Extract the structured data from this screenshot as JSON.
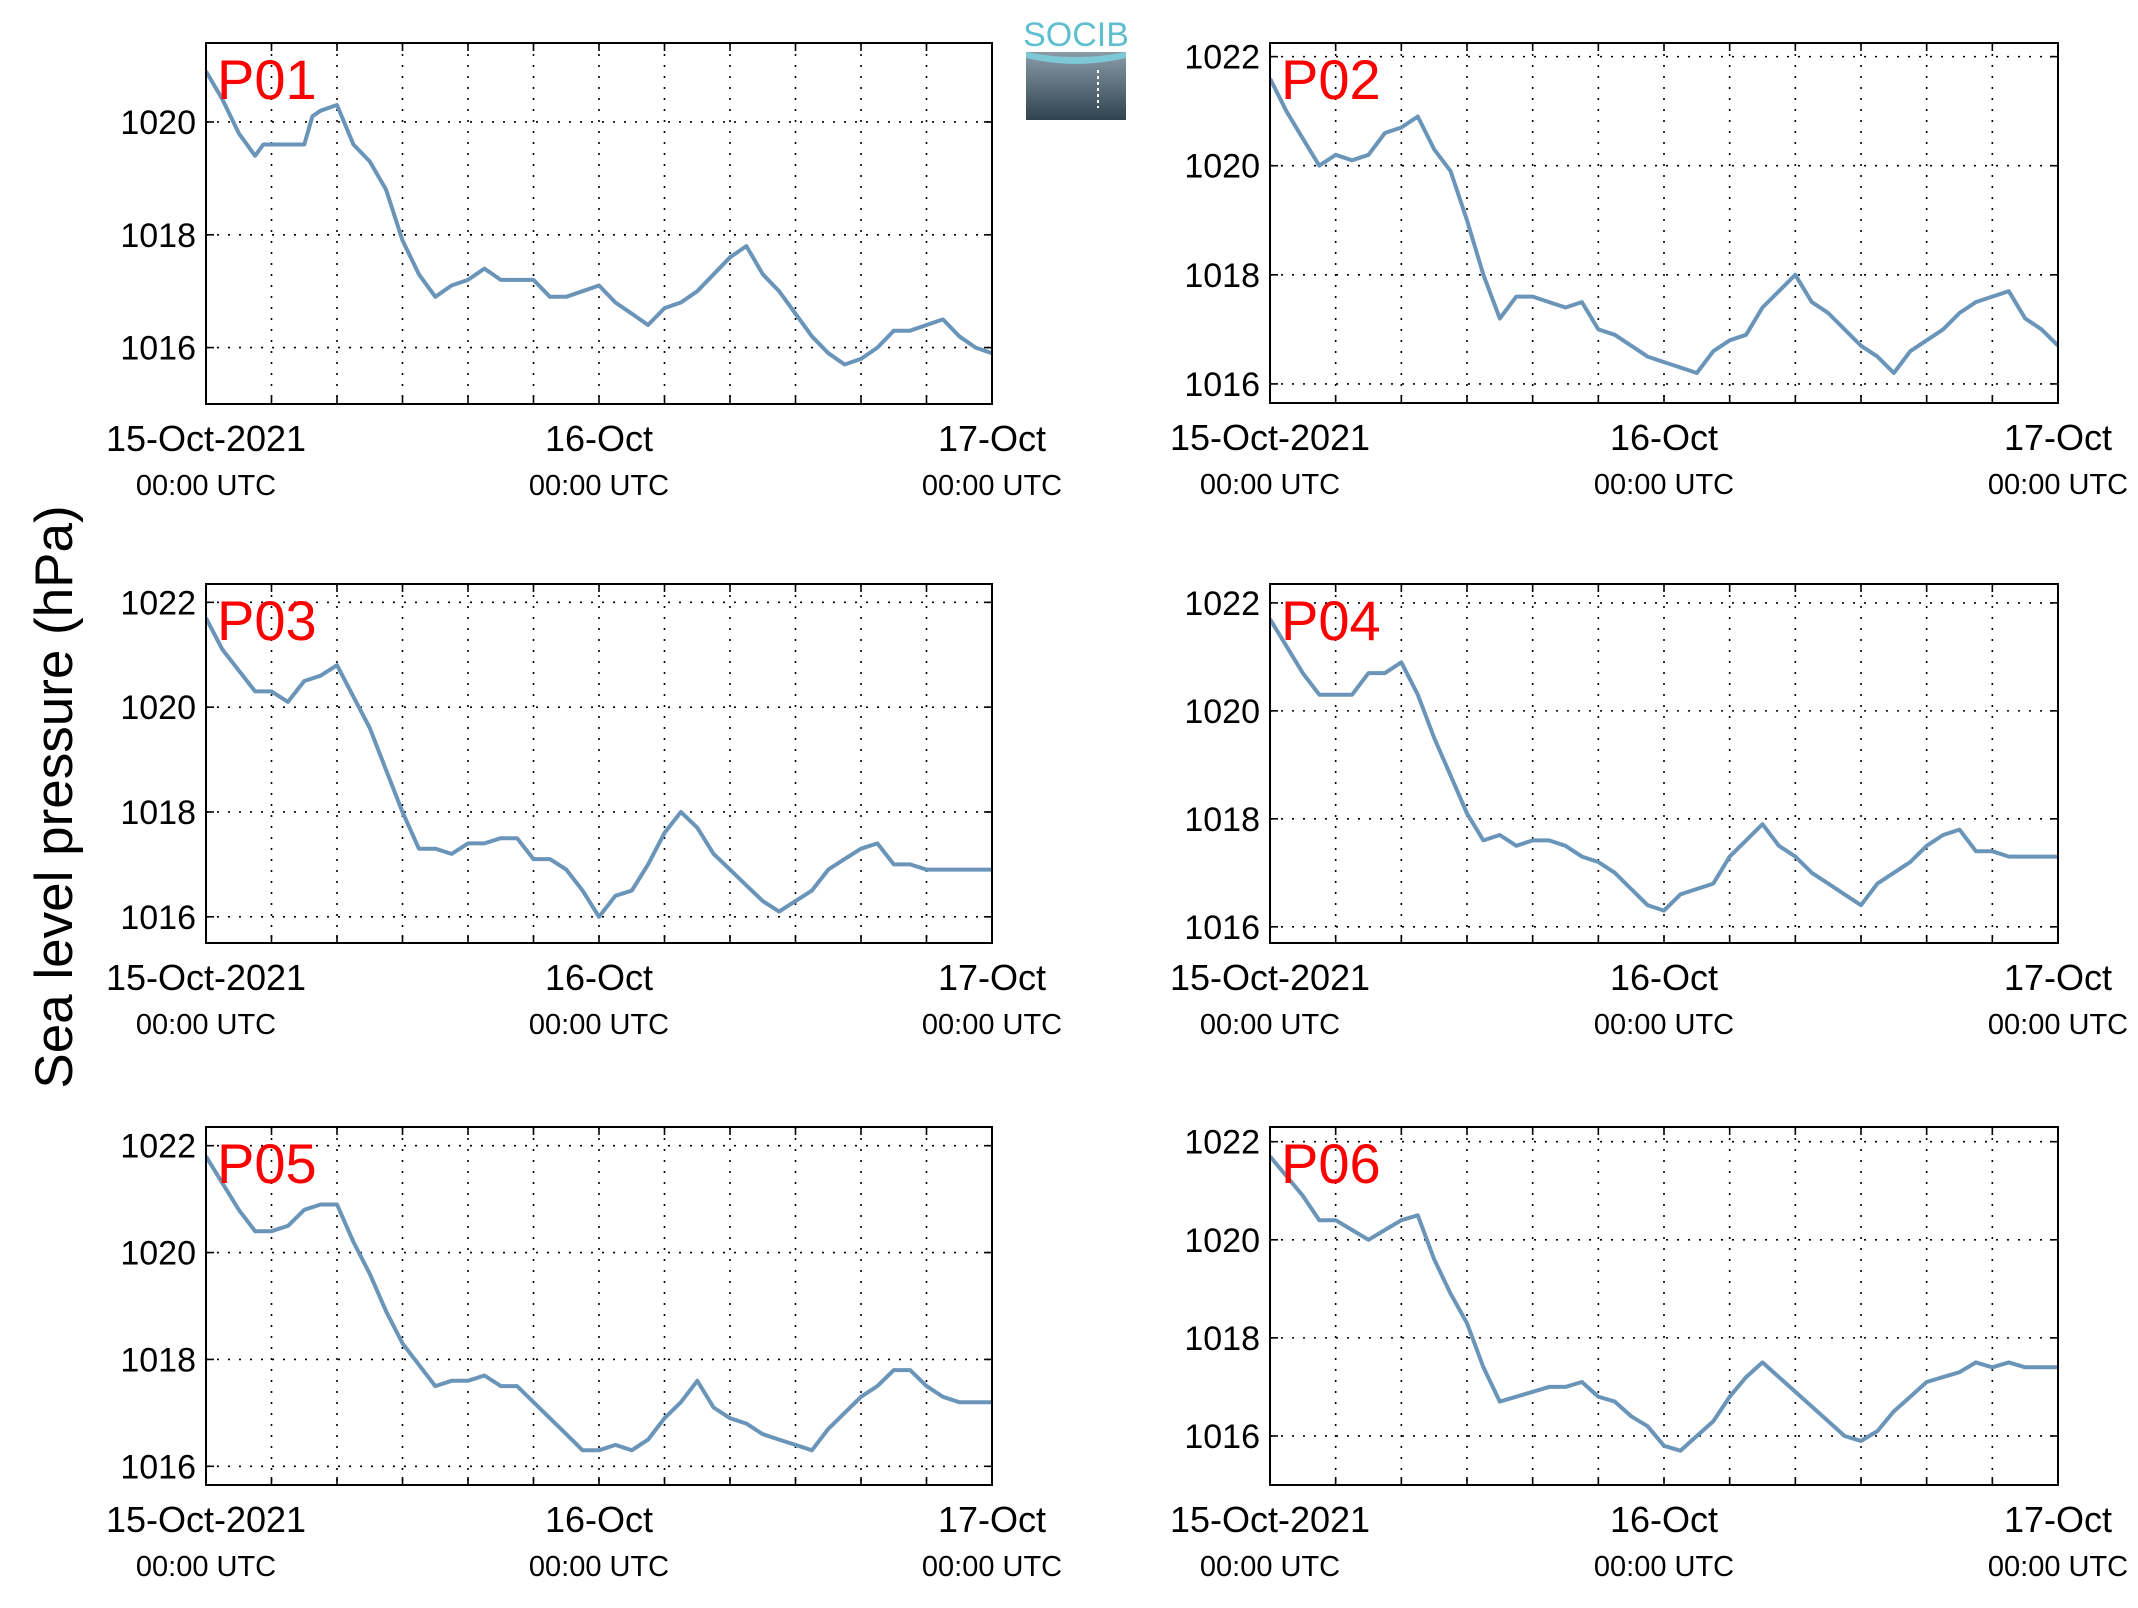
{
  "figure": {
    "ylabel": "Sea level pressure (hPa)",
    "logo_text": "SOCIB",
    "colors": {
      "line": "#6a95b9",
      "panel_label": "#ff0000",
      "axis": "#000000",
      "grid": "#000000"
    }
  },
  "chart_data": [
    {
      "type": "line",
      "title": "",
      "panel_label": "P01",
      "ylabel": "Sea level pressure (hPa)",
      "xlabel": "",
      "xlim": [
        0,
        48
      ],
      "ylim": [
        1015,
        1021.4
      ],
      "yticks": [
        1016,
        1018,
        1020
      ],
      "xticks": [
        {
          "at": 0,
          "label": "15-Oct-2021",
          "sub": "00:00 UTC"
        },
        {
          "at": 24,
          "label": "16-Oct",
          "sub": "00:00 UTC"
        },
        {
          "at": 48,
          "label": "17-Oct",
          "sub": "00:00 UTC"
        }
      ],
      "grid": true,
      "series": [
        {
          "x": [
            0,
            1,
            2,
            3,
            3.5,
            4,
            5,
            6,
            6.5,
            7,
            8,
            9,
            10,
            11,
            12,
            13,
            14,
            15,
            16,
            17,
            18,
            19,
            20,
            21,
            22,
            23,
            24,
            25,
            26,
            27,
            28,
            29,
            30,
            31,
            32,
            33,
            34,
            35,
            36,
            37,
            38,
            39,
            40,
            41,
            42,
            43,
            44,
            45,
            46,
            47,
            48
          ],
          "values": [
            1020.9,
            1020.4,
            1019.8,
            1019.4,
            1019.6,
            1019.6,
            1019.6,
            1019.6,
            1020.1,
            1020.2,
            1020.3,
            1019.6,
            1019.3,
            1018.8,
            1017.9,
            1017.3,
            1016.9,
            1017.1,
            1017.2,
            1017.4,
            1017.2,
            1017.2,
            1017.2,
            1016.9,
            1016.9,
            1017.0,
            1017.1,
            1016.8,
            1016.6,
            1016.4,
            1016.7,
            1016.8,
            1017.0,
            1017.3,
            1017.6,
            1017.8,
            1017.3,
            1017.0,
            1016.6,
            1016.2,
            1015.9,
            1015.7,
            1015.8,
            1016.0,
            1016.3,
            1016.3,
            1016.4,
            1016.5,
            1016.2,
            1016.0,
            1015.9
          ]
        }
      ]
    },
    {
      "type": "line",
      "title": "",
      "panel_label": "P02",
      "ylabel": "Sea level pressure (hPa)",
      "xlabel": "",
      "xlim": [
        0,
        48
      ],
      "ylim": [
        1015.65,
        1022.25
      ],
      "yticks": [
        1016,
        1018,
        1020,
        1022
      ],
      "xticks": [
        {
          "at": 0,
          "label": "15-Oct-2021",
          "sub": "00:00 UTC"
        },
        {
          "at": 24,
          "label": "16-Oct",
          "sub": "00:00 UTC"
        },
        {
          "at": 48,
          "label": "17-Oct",
          "sub": "00:00 UTC"
        }
      ],
      "grid": true,
      "series": [
        {
          "x": [
            0,
            1,
            2,
            3,
            4,
            5,
            6,
            7,
            8,
            9,
            10,
            11,
            12,
            13,
            14,
            15,
            16,
            17,
            18,
            19,
            20,
            21,
            22,
            23,
            24,
            25,
            26,
            27,
            28,
            29,
            30,
            31,
            32,
            33,
            34,
            35,
            36,
            37,
            38,
            39,
            40,
            41,
            42,
            43,
            44,
            45,
            46,
            47,
            48
          ],
          "values": [
            1021.6,
            1021.0,
            1020.5,
            1020.0,
            1020.2,
            1020.1,
            1020.2,
            1020.6,
            1020.7,
            1020.9,
            1020.3,
            1019.9,
            1019.0,
            1018.0,
            1017.2,
            1017.6,
            1017.6,
            1017.5,
            1017.4,
            1017.5,
            1017.0,
            1016.9,
            1016.7,
            1016.5,
            1016.4,
            1016.3,
            1016.2,
            1016.6,
            1016.8,
            1016.9,
            1017.4,
            1017.7,
            1018.0,
            1017.5,
            1017.3,
            1017.0,
            1016.7,
            1016.5,
            1016.2,
            1016.6,
            1016.8,
            1017.0,
            1017.3,
            1017.5,
            1017.6,
            1017.7,
            1017.2,
            1017.0,
            1016.7
          ]
        }
      ]
    },
    {
      "type": "line",
      "title": "",
      "panel_label": "P03",
      "ylabel": "Sea level pressure (hPa)",
      "xlabel": "",
      "xlim": [
        0,
        48
      ],
      "ylim": [
        1015.5,
        1022.35
      ],
      "yticks": [
        1016,
        1018,
        1020,
        1022
      ],
      "xticks": [
        {
          "at": 0,
          "label": "15-Oct-2021",
          "sub": "00:00 UTC"
        },
        {
          "at": 24,
          "label": "16-Oct",
          "sub": "00:00 UTC"
        },
        {
          "at": 48,
          "label": "17-Oct",
          "sub": "00:00 UTC"
        }
      ],
      "grid": true,
      "series": [
        {
          "x": [
            0,
            1,
            2,
            3,
            4,
            5,
            6,
            7,
            8,
            9,
            10,
            11,
            12,
            13,
            14,
            15,
            16,
            17,
            18,
            19,
            20,
            21,
            22,
            23,
            24,
            25,
            26,
            27,
            28,
            29,
            30,
            31,
            32,
            33,
            34,
            35,
            36,
            37,
            38,
            39,
            40,
            41,
            42,
            43,
            44,
            45,
            46,
            47,
            48
          ],
          "values": [
            1021.7,
            1021.1,
            1020.7,
            1020.3,
            1020.3,
            1020.1,
            1020.5,
            1020.6,
            1020.8,
            1020.2,
            1019.6,
            1018.8,
            1018.0,
            1017.3,
            1017.3,
            1017.2,
            1017.4,
            1017.4,
            1017.5,
            1017.5,
            1017.1,
            1017.1,
            1016.9,
            1016.5,
            1016.0,
            1016.4,
            1016.5,
            1017.0,
            1017.6,
            1018.0,
            1017.7,
            1017.2,
            1016.9,
            1016.6,
            1016.3,
            1016.1,
            1016.3,
            1016.5,
            1016.9,
            1017.1,
            1017.3,
            1017.4,
            1017.0,
            1017.0,
            1016.9,
            1016.9,
            1016.9,
            1016.9,
            1016.9
          ]
        }
      ]
    },
    {
      "type": "line",
      "title": "",
      "panel_label": "P04",
      "ylabel": "Sea level pressure (hPa)",
      "xlabel": "",
      "xlim": [
        0,
        48
      ],
      "ylim": [
        1015.7,
        1022.35
      ],
      "yticks": [
        1016,
        1018,
        1020,
        1022
      ],
      "xticks": [
        {
          "at": 0,
          "label": "15-Oct-2021",
          "sub": "00:00 UTC"
        },
        {
          "at": 24,
          "label": "16-Oct",
          "sub": "00:00 UTC"
        },
        {
          "at": 48,
          "label": "17-Oct",
          "sub": "00:00 UTC"
        }
      ],
      "grid": true,
      "series": [
        {
          "x": [
            0,
            1,
            2,
            3,
            4,
            5,
            6,
            7,
            8,
            9,
            10,
            11,
            12,
            13,
            14,
            15,
            16,
            17,
            18,
            19,
            20,
            21,
            22,
            23,
            24,
            25,
            26,
            27,
            28,
            29,
            30,
            31,
            32,
            33,
            34,
            35,
            36,
            37,
            38,
            39,
            40,
            41,
            42,
            43,
            44,
            45,
            46,
            47,
            48
          ],
          "values": [
            1021.7,
            1021.2,
            1020.7,
            1020.3,
            1020.3,
            1020.3,
            1020.7,
            1020.7,
            1020.9,
            1020.3,
            1019.5,
            1018.8,
            1018.1,
            1017.6,
            1017.7,
            1017.5,
            1017.6,
            1017.6,
            1017.5,
            1017.3,
            1017.2,
            1017.0,
            1016.7,
            1016.4,
            1016.3,
            1016.6,
            1016.7,
            1016.8,
            1017.3,
            1017.6,
            1017.9,
            1017.5,
            1017.3,
            1017.0,
            1016.8,
            1016.6,
            1016.4,
            1016.8,
            1017.0,
            1017.2,
            1017.5,
            1017.7,
            1017.8,
            1017.4,
            1017.4,
            1017.3,
            1017.3,
            1017.3,
            1017.3
          ]
        }
      ]
    },
    {
      "type": "line",
      "title": "",
      "panel_label": "P05",
      "ylabel": "Sea level pressure (hPa)",
      "xlabel": "",
      "xlim": [
        0,
        48
      ],
      "ylim": [
        1015.65,
        1022.35
      ],
      "yticks": [
        1016,
        1018,
        1020,
        1022
      ],
      "xticks": [
        {
          "at": 0,
          "label": "15-Oct-2021",
          "sub": "00:00 UTC"
        },
        {
          "at": 24,
          "label": "16-Oct",
          "sub": "00:00 UTC"
        },
        {
          "at": 48,
          "label": "17-Oct",
          "sub": "00:00 UTC"
        }
      ],
      "grid": true,
      "series": [
        {
          "x": [
            0,
            1,
            2,
            3,
            4,
            5,
            6,
            7,
            8,
            9,
            10,
            11,
            12,
            13,
            14,
            15,
            16,
            17,
            18,
            19,
            20,
            21,
            22,
            23,
            24,
            25,
            26,
            27,
            28,
            29,
            30,
            31,
            32,
            33,
            34,
            35,
            36,
            37,
            38,
            39,
            40,
            41,
            42,
            43,
            44,
            45,
            46,
            47,
            48
          ],
          "values": [
            1021.8,
            1021.3,
            1020.8,
            1020.4,
            1020.4,
            1020.5,
            1020.8,
            1020.9,
            1020.9,
            1020.2,
            1019.6,
            1018.9,
            1018.3,
            1017.9,
            1017.5,
            1017.6,
            1017.6,
            1017.7,
            1017.5,
            1017.5,
            1017.2,
            1016.9,
            1016.6,
            1016.3,
            1016.3,
            1016.4,
            1016.3,
            1016.5,
            1016.9,
            1017.2,
            1017.6,
            1017.1,
            1016.9,
            1016.8,
            1016.6,
            1016.5,
            1016.4,
            1016.3,
            1016.7,
            1017.0,
            1017.3,
            1017.5,
            1017.8,
            1017.8,
            1017.5,
            1017.3,
            1017.2,
            1017.2,
            1017.2
          ]
        }
      ]
    },
    {
      "type": "line",
      "title": "",
      "panel_label": "P06",
      "ylabel": "Sea level pressure (hPa)",
      "xlabel": "",
      "xlim": [
        0,
        48
      ],
      "ylim": [
        1015.0,
        1022.3
      ],
      "yticks": [
        1016,
        1018,
        1020,
        1022
      ],
      "xticks": [
        {
          "at": 0,
          "label": "15-Oct-2021",
          "sub": "00:00 UTC"
        },
        {
          "at": 24,
          "label": "16-Oct",
          "sub": "00:00 UTC"
        },
        {
          "at": 48,
          "label": "17-Oct",
          "sub": "00:00 UTC"
        }
      ],
      "grid": true,
      "series": [
        {
          "x": [
            0,
            1,
            2,
            3,
            4,
            5,
            6,
            7,
            8,
            9,
            10,
            11,
            12,
            13,
            14,
            15,
            16,
            17,
            18,
            19,
            20,
            21,
            22,
            23,
            24,
            25,
            26,
            27,
            28,
            29,
            30,
            31,
            32,
            33,
            34,
            35,
            36,
            37,
            38,
            39,
            40,
            41,
            42,
            43,
            44,
            45,
            46,
            47,
            48
          ],
          "values": [
            1021.7,
            1021.3,
            1020.9,
            1020.4,
            1020.4,
            1020.2,
            1020.0,
            1020.2,
            1020.4,
            1020.5,
            1019.6,
            1018.9,
            1018.3,
            1017.4,
            1016.7,
            1016.8,
            1016.9,
            1017.0,
            1017.0,
            1017.1,
            1016.8,
            1016.7,
            1016.4,
            1016.2,
            1015.8,
            1015.7,
            1016.0,
            1016.3,
            1016.8,
            1017.2,
            1017.5,
            1017.2,
            1016.9,
            1016.6,
            1016.3,
            1016.0,
            1015.9,
            1016.1,
            1016.5,
            1016.8,
            1017.1,
            1017.2,
            1017.3,
            1017.5,
            1017.4,
            1017.5,
            1017.4,
            1017.4,
            1017.4
          ]
        }
      ]
    }
  ]
}
